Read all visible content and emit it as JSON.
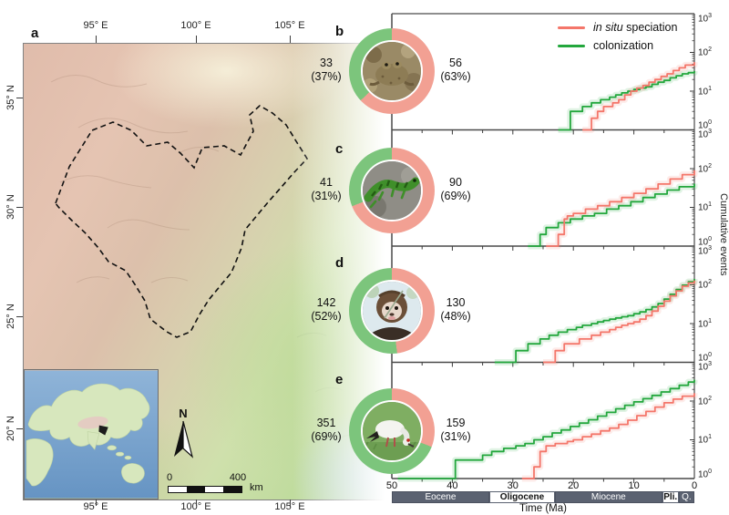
{
  "figure": {
    "panel_labels": {
      "map": "a",
      "amphibians": "b",
      "reptiles": "c",
      "mammals": "d",
      "birds": "e"
    }
  },
  "map": {
    "top_axis_labels": [
      "95° E",
      "100° E",
      "105° E"
    ],
    "bottom_axis_labels": [
      "95° E",
      "100° E",
      "105° E"
    ],
    "left_axis_labels": [
      "35° N",
      "30° N",
      "25° N",
      "20° N"
    ],
    "north_label": "N",
    "scale_bar": {
      "start": "0",
      "end": "400",
      "unit": "km"
    }
  },
  "legend": {
    "items": [
      {
        "label_italic": "in situ",
        "label_rest": " speciation",
        "color": "#f4766a"
      },
      {
        "label": "colonization",
        "color": "#23a73d"
      }
    ]
  },
  "donuts": [
    {
      "panel": "b",
      "group": "amphibians",
      "left_value": "33",
      "left_pct": "(37%)",
      "right_value": "56",
      "right_pct": "(63%)",
      "green_pct": 37,
      "photo": "frog-photo"
    },
    {
      "panel": "c",
      "group": "reptiles",
      "left_value": "41",
      "left_pct": "(31%)",
      "right_value": "90",
      "right_pct": "(69%)",
      "green_pct": 31,
      "photo": "lizard-photo"
    },
    {
      "panel": "d",
      "group": "mammals",
      "left_value": "142",
      "left_pct": "(52%)",
      "right_value": "130",
      "right_pct": "(48%)",
      "green_pct": 52,
      "photo": "monkey-photo"
    },
    {
      "panel": "e",
      "group": "birds",
      "left_value": "351",
      "left_pct": "(69%)",
      "right_value": "159",
      "right_pct": "(31%)",
      "green_pct": 69,
      "photo": "crane-photo"
    }
  ],
  "chart_data": [
    {
      "panel": "b",
      "group": "amphibians",
      "type": "line",
      "step": true,
      "x_unit": "Ma",
      "xlim": [
        50,
        0
      ],
      "y_log": true,
      "ylim": [
        1,
        1000
      ],
      "series": [
        {
          "name": "in situ speciation",
          "color": "#f4766a",
          "total": 56,
          "points": [
            [
              18.5,
              1
            ],
            [
              17,
              2
            ],
            [
              16,
              3
            ],
            [
              15,
              4
            ],
            [
              13.5,
              5
            ],
            [
              12.5,
              6
            ],
            [
              11.5,
              8
            ],
            [
              10.5,
              10
            ],
            [
              9.5,
              12
            ],
            [
              8.5,
              14
            ],
            [
              7.5,
              17
            ],
            [
              6.5,
              20
            ],
            [
              5.5,
              24
            ],
            [
              4.5,
              28
            ],
            [
              3.5,
              34
            ],
            [
              2.5,
              40
            ],
            [
              1.5,
              47
            ],
            [
              0,
              56
            ]
          ]
        },
        {
          "name": "colonization",
          "color": "#23a73d",
          "total": 33,
          "points": [
            [
              22.5,
              1
            ],
            [
              20.5,
              3
            ],
            [
              18.5,
              4
            ],
            [
              17,
              5
            ],
            [
              15.5,
              6
            ],
            [
              14,
              7
            ],
            [
              13,
              8
            ],
            [
              12,
              9
            ],
            [
              11,
              10
            ],
            [
              10,
              11
            ],
            [
              9,
              12
            ],
            [
              8,
              13
            ],
            [
              7,
              15
            ],
            [
              6,
              17
            ],
            [
              5,
              19
            ],
            [
              4,
              22
            ],
            [
              3,
              25
            ],
            [
              2,
              28
            ],
            [
              1,
              30
            ],
            [
              0,
              33
            ]
          ]
        }
      ]
    },
    {
      "panel": "c",
      "group": "reptiles",
      "type": "line",
      "step": true,
      "x_unit": "Ma",
      "xlim": [
        50,
        0
      ],
      "y_log": true,
      "ylim": [
        1,
        1000
      ],
      "series": [
        {
          "name": "in situ speciation",
          "color": "#f4766a",
          "total": 90,
          "points": [
            [
              24.5,
              1
            ],
            [
              22.5,
              2
            ],
            [
              21.5,
              5
            ],
            [
              21,
              6
            ],
            [
              20,
              7
            ],
            [
              18,
              9
            ],
            [
              16,
              11
            ],
            [
              14,
              14
            ],
            [
              12,
              18
            ],
            [
              10,
              23
            ],
            [
              8,
              30
            ],
            [
              6,
              40
            ],
            [
              4,
              54
            ],
            [
              2,
              70
            ],
            [
              0,
              90
            ]
          ]
        },
        {
          "name": "colonization",
          "color": "#23a73d",
          "total": 41,
          "points": [
            [
              27.5,
              1
            ],
            [
              25.5,
              2
            ],
            [
              24.5,
              3
            ],
            [
              22.5,
              4
            ],
            [
              20.5,
              5
            ],
            [
              18.5,
              6
            ],
            [
              16.5,
              7
            ],
            [
              14.5,
              9
            ],
            [
              12.5,
              11
            ],
            [
              10.5,
              14
            ],
            [
              8.5,
              18
            ],
            [
              6.5,
              22
            ],
            [
              4.5,
              28
            ],
            [
              2.5,
              34
            ],
            [
              0,
              41
            ]
          ]
        }
      ]
    },
    {
      "panel": "d",
      "group": "mammals",
      "type": "line",
      "step": true,
      "x_unit": "Ma",
      "xlim": [
        50,
        0
      ],
      "y_log": true,
      "ylim": [
        1,
        1000
      ],
      "series": [
        {
          "name": "in situ speciation",
          "color": "#f4766a",
          "total": 130,
          "points": [
            [
              25,
              1
            ],
            [
              23,
              2
            ],
            [
              21.5,
              3
            ],
            [
              19,
              4
            ],
            [
              17,
              5
            ],
            [
              15.5,
              6
            ],
            [
              14,
              7
            ],
            [
              13,
              8
            ],
            [
              12,
              9
            ],
            [
              11,
              10
            ],
            [
              10,
              11
            ],
            [
              9,
              13
            ],
            [
              8,
              16
            ],
            [
              7,
              21
            ],
            [
              6,
              28
            ],
            [
              5,
              38
            ],
            [
              4,
              52
            ],
            [
              3,
              70
            ],
            [
              2,
              92
            ],
            [
              1,
              112
            ],
            [
              0,
              130
            ]
          ]
        },
        {
          "name": "colonization",
          "color": "#23a73d",
          "total": 142,
          "points": [
            [
              33,
              1
            ],
            [
              29.5,
              2
            ],
            [
              27.5,
              3
            ],
            [
              25.5,
              4
            ],
            [
              24,
              5
            ],
            [
              22.5,
              6
            ],
            [
              21,
              7
            ],
            [
              19.5,
              8
            ],
            [
              18.5,
              9
            ],
            [
              17,
              10
            ],
            [
              16,
              11
            ],
            [
              15,
              12
            ],
            [
              14,
              13
            ],
            [
              13,
              14
            ],
            [
              12,
              15
            ],
            [
              11,
              16
            ],
            [
              10,
              18
            ],
            [
              9,
              20
            ],
            [
              8,
              23
            ],
            [
              7,
              27
            ],
            [
              6,
              33
            ],
            [
              5,
              43
            ],
            [
              4,
              57
            ],
            [
              3,
              76
            ],
            [
              2,
              98
            ],
            [
              1,
              120
            ],
            [
              0,
              142
            ]
          ]
        }
      ]
    },
    {
      "panel": "e",
      "group": "birds",
      "type": "line",
      "step": true,
      "x_unit": "Ma",
      "xlim": [
        50,
        0
      ],
      "y_log": true,
      "ylim": [
        1,
        1000
      ],
      "series": [
        {
          "name": "in situ speciation",
          "color": "#f4766a",
          "total": 159,
          "points": [
            [
              28.5,
              1
            ],
            [
              26.5,
              2
            ],
            [
              25.5,
              5
            ],
            [
              24.5,
              7
            ],
            [
              23,
              8
            ],
            [
              21,
              9
            ],
            [
              20,
              10
            ],
            [
              18.5,
              12
            ],
            [
              17,
              14
            ],
            [
              15.5,
              17
            ],
            [
              14,
              20
            ],
            [
              12.5,
              25
            ],
            [
              11,
              32
            ],
            [
              9.5,
              42
            ],
            [
              8,
              54
            ],
            [
              6.5,
              70
            ],
            [
              5,
              90
            ],
            [
              3.5,
              112
            ],
            [
              2,
              134
            ],
            [
              0,
              159
            ]
          ]
        },
        {
          "name": "colonization",
          "color": "#23a73d",
          "total": 351,
          "points": [
            [
              49,
              1
            ],
            [
              39.5,
              3
            ],
            [
              35,
              4
            ],
            [
              33.5,
              5
            ],
            [
              31.5,
              6
            ],
            [
              29.5,
              7
            ],
            [
              28,
              8
            ],
            [
              26.5,
              10
            ],
            [
              25,
              12
            ],
            [
              23.5,
              15
            ],
            [
              22,
              18
            ],
            [
              20.5,
              22
            ],
            [
              19,
              27
            ],
            [
              17.5,
              33
            ],
            [
              16,
              41
            ],
            [
              14.5,
              51
            ],
            [
              13,
              63
            ],
            [
              11.5,
              78
            ],
            [
              10,
              95
            ],
            [
              8.5,
              115
            ],
            [
              7,
              140
            ],
            [
              5.5,
              172
            ],
            [
              4,
              210
            ],
            [
              2.5,
              255
            ],
            [
              1,
              310
            ],
            [
              0,
              351
            ]
          ]
        }
      ]
    }
  ],
  "y_axis": {
    "label": "Cumulative events",
    "base": "10",
    "exponents": [
      3,
      2,
      1,
      0
    ]
  },
  "time_axis": {
    "label": "Time (Ma)",
    "ticks": [
      50,
      40,
      30,
      20,
      10,
      0
    ]
  },
  "epochs": [
    {
      "name": "Eocene",
      "start": 50,
      "end": 33.9,
      "style": "dark"
    },
    {
      "name": "Oligocene",
      "start": 33.9,
      "end": 23.03,
      "style": "light"
    },
    {
      "name": "Miocene",
      "start": 23.03,
      "end": 5.33,
      "style": "dark"
    },
    {
      "name": "Pli.",
      "start": 5.33,
      "end": 2.58,
      "style": "light"
    },
    {
      "name": "Q.",
      "start": 2.58,
      "end": 0,
      "style": "dark"
    }
  ],
  "colors": {
    "in_situ_line": "#f4766a",
    "colonization_line": "#23a73d",
    "in_situ_ring": "#f2a093",
    "colonization_ring": "#7cc57c",
    "epoch_dark": "#5b6271",
    "spine": "#4a4a4a"
  }
}
